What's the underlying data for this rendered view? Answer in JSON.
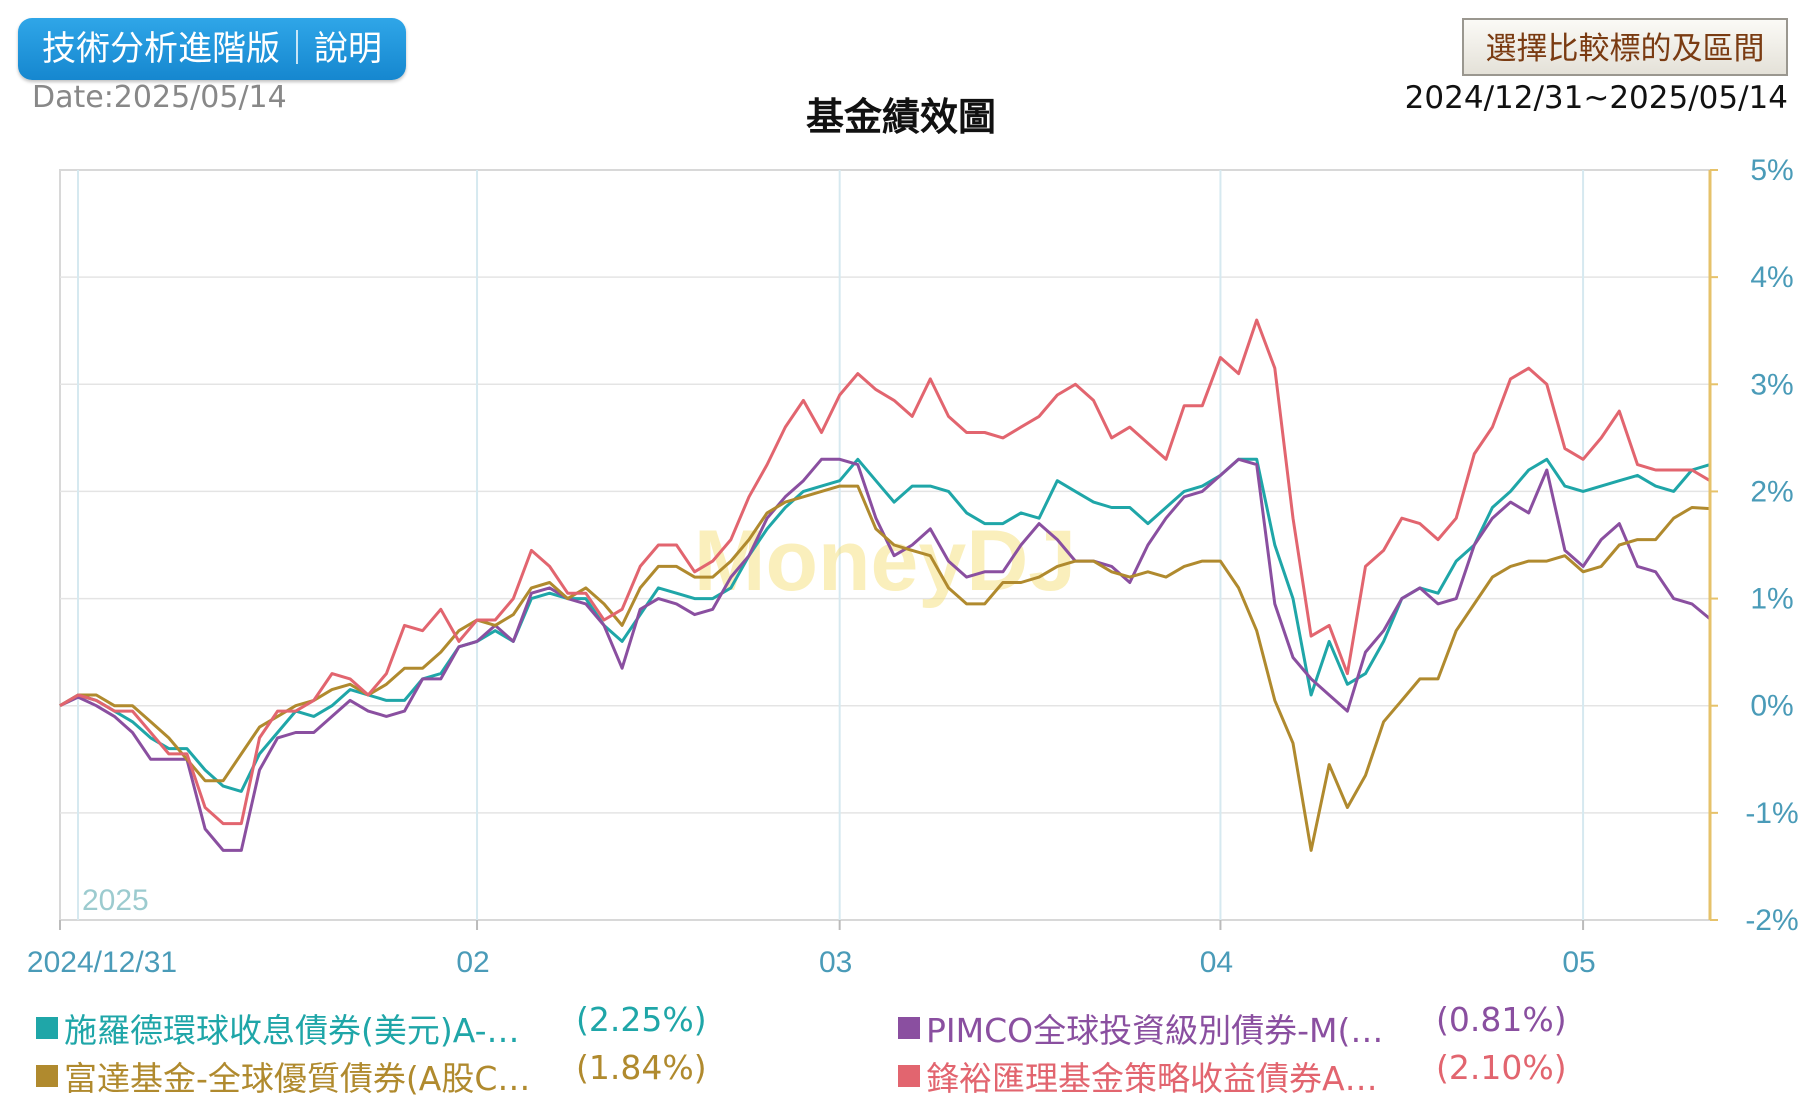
{
  "header": {
    "tech_button_label": "技術分析進階版｜說明",
    "date_label": "Date:2025/05/14",
    "title": "基金績效圖",
    "compare_button_label": "選擇比較標的及區間",
    "range_label": "2024/12/31~2025/05/14"
  },
  "chart_data": {
    "type": "line",
    "watermark": "MoneyDJ",
    "year_label": "2025",
    "x_tick_labels": [
      "2024/12/31",
      "02",
      "03",
      "04",
      "05"
    ],
    "x_tick_positions": [
      0,
      23,
      43,
      64,
      84
    ],
    "y_tick_labels": [
      "5%",
      "4%",
      "3%",
      "2%",
      "1%",
      "0%",
      "-1%",
      "-2%"
    ],
    "y_ticks": [
      5,
      4,
      3,
      2,
      1,
      0,
      -1,
      -2
    ],
    "ylim": [
      -2,
      5
    ],
    "grid": true,
    "axis_color": "#e6c26a",
    "tick_label_color": "#4a9bb8",
    "series": [
      {
        "name": "施羅德環球收息債券(美元)A-…",
        "final": "(2.25%)",
        "color": "#1fa6a8",
        "values": [
          0,
          0.1,
          0.05,
          -0.05,
          -0.15,
          -0.3,
          -0.4,
          -0.4,
          -0.6,
          -0.75,
          -0.8,
          -0.45,
          -0.25,
          -0.05,
          -0.1,
          0,
          0.15,
          0.1,
          0.05,
          0.05,
          0.25,
          0.3,
          0.55,
          0.6,
          0.7,
          0.6,
          1.0,
          1.05,
          1.0,
          1.0,
          0.75,
          0.6,
          0.85,
          1.1,
          1.05,
          1.0,
          1.0,
          1.1,
          1.4,
          1.65,
          1.85,
          2.0,
          2.05,
          2.1,
          2.3,
          2.1,
          1.9,
          2.05,
          2.05,
          2.0,
          1.8,
          1.7,
          1.7,
          1.8,
          1.75,
          2.1,
          2.0,
          1.9,
          1.85,
          1.85,
          1.7,
          1.85,
          2.0,
          2.05,
          2.15,
          2.3,
          2.3,
          1.5,
          1.0,
          0.1,
          0.6,
          0.2,
          0.3,
          0.6,
          1.0,
          1.1,
          1.05,
          1.35,
          1.5,
          1.85,
          2.0,
          2.2,
          2.3,
          2.05,
          2.0,
          2.05,
          2.1,
          2.15,
          2.05,
          2.0,
          2.2,
          2.25
        ]
      },
      {
        "name": "PIMCO全球投資級別債券-M(…",
        "final": "(0.81%)",
        "color": "#8a4fa0",
        "values": [
          0,
          0.08,
          0.0,
          -0.1,
          -0.25,
          -0.5,
          -0.5,
          -0.5,
          -1.15,
          -1.35,
          -1.35,
          -0.6,
          -0.3,
          -0.25,
          -0.25,
          -0.1,
          0.05,
          -0.05,
          -0.1,
          -0.05,
          0.25,
          0.25,
          0.55,
          0.6,
          0.75,
          0.6,
          1.05,
          1.1,
          1.0,
          0.95,
          0.75,
          0.35,
          0.9,
          1.0,
          0.95,
          0.85,
          0.9,
          1.2,
          1.4,
          1.75,
          1.95,
          2.1,
          2.3,
          2.3,
          2.25,
          1.75,
          1.4,
          1.5,
          1.65,
          1.35,
          1.2,
          1.25,
          1.25,
          1.5,
          1.7,
          1.55,
          1.35,
          1.35,
          1.3,
          1.15,
          1.5,
          1.75,
          1.95,
          2.0,
          2.15,
          2.3,
          2.25,
          0.95,
          0.45,
          0.25,
          0.1,
          -0.05,
          0.5,
          0.7,
          1.0,
          1.1,
          0.95,
          1.0,
          1.5,
          1.75,
          1.9,
          1.8,
          2.2,
          1.45,
          1.3,
          1.55,
          1.7,
          1.3,
          1.25,
          1.0,
          0.95,
          0.81
        ]
      },
      {
        "name": "富達基金-全球優質債券(A股C…",
        "final": "(1.84%)",
        "color": "#b08a2e",
        "values": [
          0,
          0.1,
          0.1,
          0.0,
          0.0,
          -0.15,
          -0.3,
          -0.5,
          -0.7,
          -0.7,
          -0.45,
          -0.2,
          -0.1,
          0.0,
          0.05,
          0.15,
          0.2,
          0.1,
          0.2,
          0.35,
          0.35,
          0.5,
          0.7,
          0.8,
          0.75,
          0.85,
          1.1,
          1.15,
          1.0,
          1.1,
          0.95,
          0.75,
          1.1,
          1.3,
          1.3,
          1.2,
          1.2,
          1.35,
          1.55,
          1.8,
          1.9,
          1.95,
          2.0,
          2.05,
          2.05,
          1.65,
          1.5,
          1.45,
          1.4,
          1.1,
          0.95,
          0.95,
          1.15,
          1.15,
          1.2,
          1.3,
          1.35,
          1.35,
          1.25,
          1.2,
          1.25,
          1.2,
          1.3,
          1.35,
          1.35,
          1.1,
          0.7,
          0.05,
          -0.35,
          -1.35,
          -0.55,
          -0.95,
          -0.65,
          -0.15,
          0.05,
          0.25,
          0.25,
          0.7,
          0.95,
          1.2,
          1.3,
          1.35,
          1.35,
          1.4,
          1.25,
          1.3,
          1.5,
          1.55,
          1.55,
          1.75,
          1.85,
          1.84
        ]
      },
      {
        "name": "鋒裕匯理基金策略收益債券A…",
        "final": "(2.10%)",
        "color": "#e2656f",
        "values": [
          0,
          0.1,
          0.05,
          -0.05,
          -0.05,
          -0.25,
          -0.45,
          -0.45,
          -0.95,
          -1.1,
          -1.1,
          -0.3,
          -0.05,
          -0.05,
          0.05,
          0.3,
          0.25,
          0.1,
          0.3,
          0.75,
          0.7,
          0.9,
          0.6,
          0.8,
          0.8,
          1.0,
          1.45,
          1.3,
          1.05,
          1.05,
          0.8,
          0.9,
          1.3,
          1.5,
          1.5,
          1.25,
          1.35,
          1.55,
          1.95,
          2.25,
          2.6,
          2.85,
          2.55,
          2.9,
          3.1,
          2.95,
          2.85,
          2.7,
          3.05,
          2.7,
          2.55,
          2.55,
          2.5,
          2.6,
          2.7,
          2.9,
          3.0,
          2.85,
          2.5,
          2.6,
          2.45,
          2.3,
          2.8,
          2.8,
          3.25,
          3.1,
          3.6,
          3.15,
          1.75,
          0.65,
          0.75,
          0.3,
          1.3,
          1.45,
          1.75,
          1.7,
          1.55,
          1.75,
          2.35,
          2.6,
          3.05,
          3.15,
          3.0,
          2.4,
          2.3,
          2.5,
          2.75,
          2.25,
          2.2,
          2.2,
          2.2,
          2.1
        ]
      }
    ]
  }
}
